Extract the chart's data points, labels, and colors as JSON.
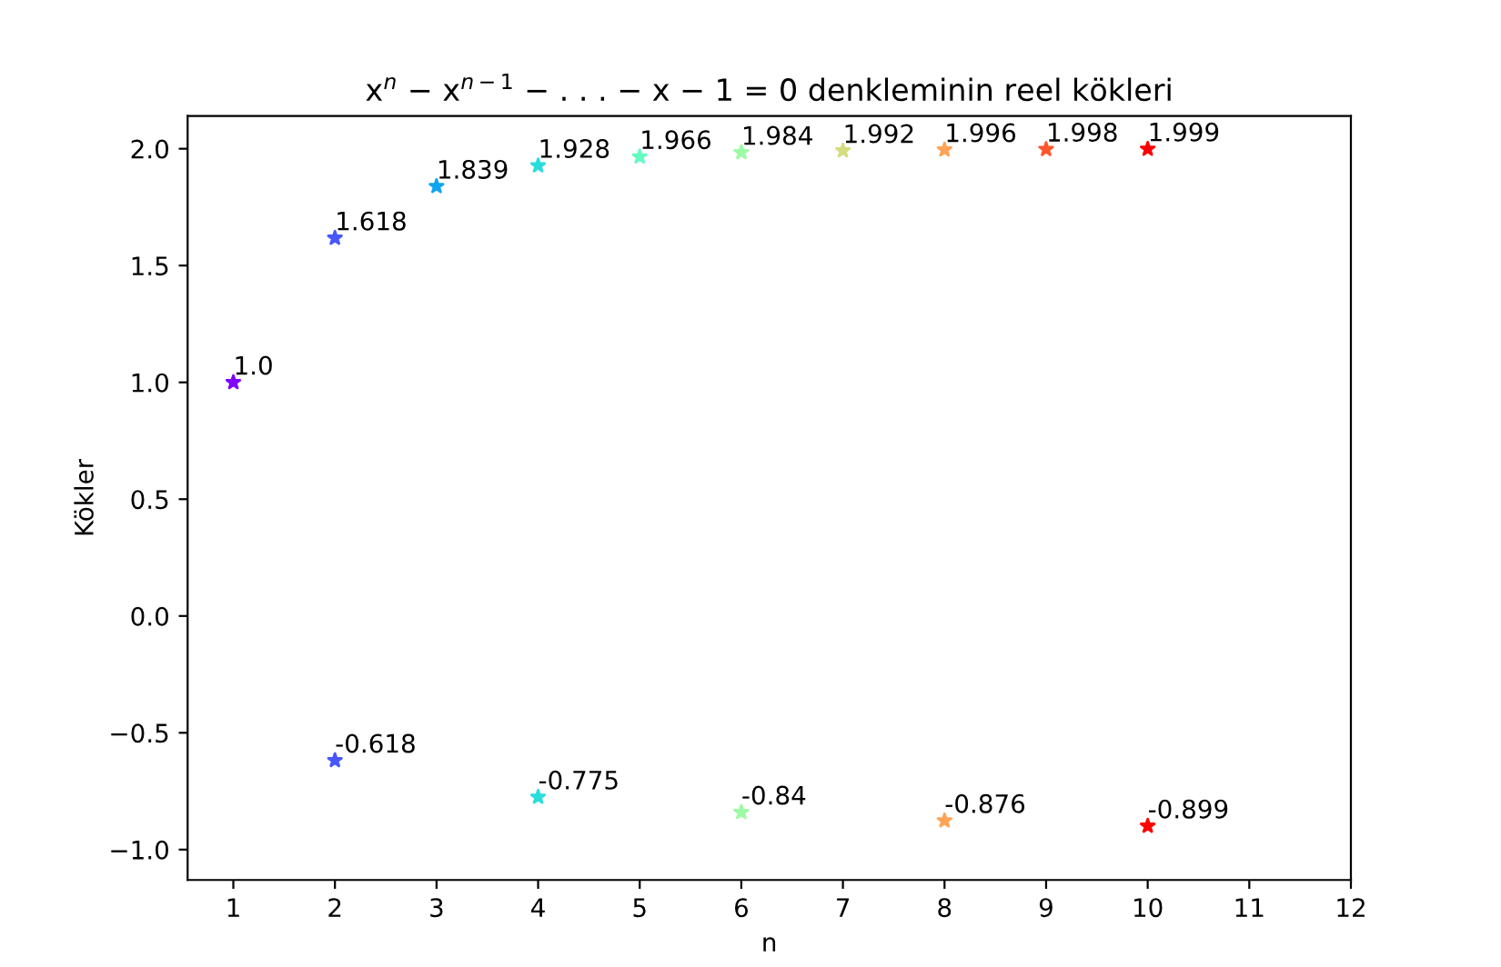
{
  "chart_data": {
    "type": "scatter",
    "title": "x$^{n}$ − x$^{n−1}$ − . . . − x − 1 = 0 denkleminin reel kökleri",
    "xlabel": "n",
    "ylabel": "Kökler",
    "series": [
      {
        "x": [
          1,
          2,
          3,
          4,
          5,
          6,
          7,
          8,
          9,
          10
        ],
        "values": [
          1.0,
          1.618,
          1.839,
          1.928,
          1.966,
          1.984,
          1.992,
          1.996,
          1.998,
          1.999
        ],
        "value_labels": [
          "1.0",
          "1.618",
          "1.839",
          "1.928",
          "1.966",
          "1.984",
          "1.992",
          "1.996",
          "1.998",
          "1.999"
        ],
        "colors": [
          "#8000ff",
          "#4757fb",
          "#0ea4f0",
          "#2adddd",
          "#63fbc3",
          "#9cfba4",
          "#d4dd80",
          "#ffa457",
          "#ff572c",
          "#ff0000"
        ]
      },
      {
        "x": [
          2,
          4,
          6,
          8,
          10
        ],
        "values": [
          -0.618,
          -0.775,
          -0.84,
          -0.876,
          -0.899
        ],
        "value_labels": [
          "-0.618",
          "-0.775",
          "-0.84",
          "-0.876",
          "-0.899"
        ],
        "colors": [
          "#4757fb",
          "#2adddd",
          "#9cfba4",
          "#ffa457",
          "#ff0000"
        ]
      }
    ],
    "marker": "star",
    "xlim": [
      0.55,
      12
    ],
    "xticks": [
      1,
      2,
      3,
      4,
      5,
      6,
      7,
      8,
      9,
      10,
      11,
      12
    ],
    "ylim": [
      -1.13,
      2.14
    ],
    "yticks": [
      {
        "value": -1,
        "label": "−1.0"
      },
      {
        "value": -0.5,
        "label": "−0.5"
      },
      {
        "value": 0,
        "label": "0.0"
      },
      {
        "value": 0.5,
        "label": "0.5"
      },
      {
        "value": 1,
        "label": "1.0"
      },
      {
        "value": 1.5,
        "label": "1.5"
      },
      {
        "value": 2,
        "label": "2.0"
      }
    ],
    "grid": false
  }
}
